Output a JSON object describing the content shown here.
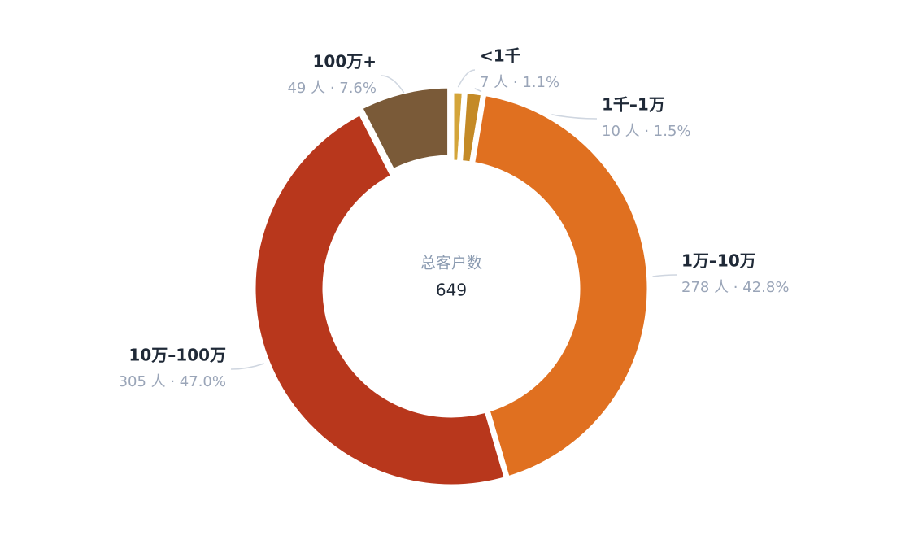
{
  "chart_data": {
    "type": "donut",
    "center_label": "总客户数",
    "center_value": 649,
    "categories": [
      "<1千",
      "1千–1万",
      "1万–10万",
      "10万–100万",
      "100万+"
    ],
    "values": [
      7,
      10,
      278,
      305,
      49
    ],
    "value_labels": [
      "7 人 · 1.1%",
      "10 人 · 1.5%",
      "278 人 · 42.8%",
      "305 人 · 47.0%",
      "49 人 · 7.6%"
    ],
    "colors": [
      "#d4a53a",
      "#c48a26",
      "#e07020",
      "#b8371c",
      "#7a5a38"
    ]
  }
}
